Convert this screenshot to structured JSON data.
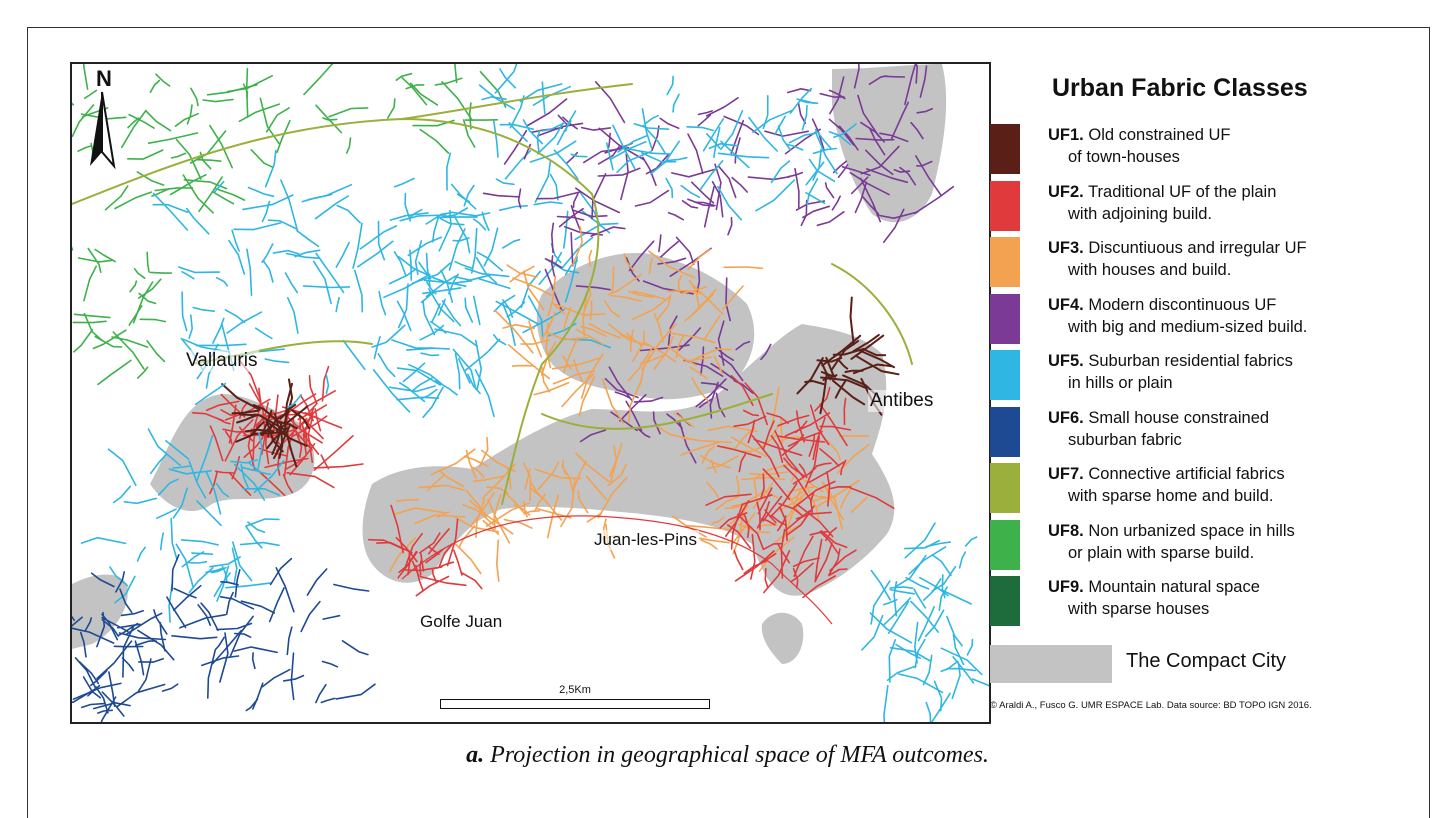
{
  "map": {
    "places": {
      "vallauris": "Vallauris",
      "antibes": "Antibes",
      "juan_les_pins": "Juan-les-Pins",
      "golfe_juan": "Golfe Juan"
    },
    "north_label": "N",
    "scale_label": "2,5Km"
  },
  "legend": {
    "title": "Urban Fabric Classes",
    "classes": [
      {
        "code": "UF1.",
        "line1": "Old constrained UF",
        "line2": "of town-houses",
        "color": "#5a1f17"
      },
      {
        "code": "UF2.",
        "line1": "Traditional UF of the plain",
        "line2": "with adjoining build.",
        "color": "#e03a3c"
      },
      {
        "code": "UF3.",
        "line1": "Discuntiuous and irregular UF",
        "line2": "with houses and build.",
        "color": "#f3a251"
      },
      {
        "code": "UF4.",
        "line1": "Modern discontinuous UF",
        "line2": "with big and medium-sized build.",
        "color": "#7a3a96"
      },
      {
        "code": "UF5.",
        "line1": "Suburban residential fabrics",
        "line2": "in hills or plain",
        "color": "#2fb6e3"
      },
      {
        "code": "UF6.",
        "line1": "Small house constrained",
        "line2": "suburban fabric",
        "color": "#1e4a93"
      },
      {
        "code": "UF7.",
        "line1": "Connective artificial fabrics",
        "line2": "with sparse home and build.",
        "color": "#9aaf3c"
      },
      {
        "code": "UF8.",
        "line1": "Non urbanized space in hills",
        "line2": "or plain with sparse  build.",
        "color": "#3eb14b"
      },
      {
        "code": "UF9.",
        "line1": "Mountain natural space",
        "line2": "with sparse houses",
        "color": "#1e6b3c"
      }
    ],
    "compact_city": {
      "label": "The Compact City",
      "color": "#c3c3c3"
    },
    "credit": "© Araldi A., Fusco G. UMR ESPACE Lab. Data source: BD TOPO IGN 2016."
  },
  "caption": {
    "letter": "a.",
    "text": "Projection in geographical space of MFA outcomes."
  }
}
